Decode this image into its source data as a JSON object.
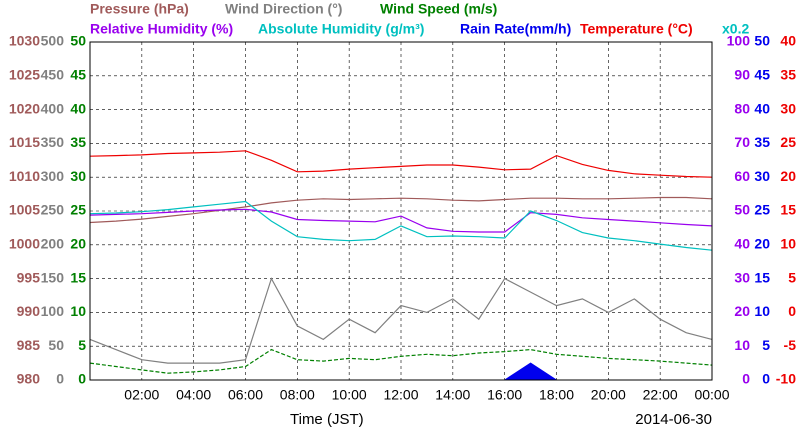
{
  "chart_data": {
    "type": "line",
    "x_label": "Time (JST)",
    "date": "2014-06-30",
    "scale_note": "x0.2",
    "x": [
      0,
      1,
      2,
      3,
      4,
      5,
      6,
      7,
      8,
      9,
      10,
      11,
      12,
      13,
      14,
      15,
      16,
      17,
      18,
      19,
      20,
      21,
      22,
      23,
      24
    ],
    "xlim": [
      0,
      24
    ],
    "xticks": [
      {
        "value": 2,
        "label": "02:00"
      },
      {
        "value": 4,
        "label": "04:00"
      },
      {
        "value": 6,
        "label": "06:00"
      },
      {
        "value": 8,
        "label": "08:00"
      },
      {
        "value": 10,
        "label": "10:00"
      },
      {
        "value": 12,
        "label": "12:00"
      },
      {
        "value": 14,
        "label": "14:00"
      },
      {
        "value": 16,
        "label": "16:00"
      },
      {
        "value": 18,
        "label": "18:00"
      },
      {
        "value": 20,
        "label": "20:00"
      },
      {
        "value": 22,
        "label": "22:00"
      },
      {
        "value": 24,
        "label": "00:00"
      }
    ],
    "grid": true,
    "y_axes": [
      {
        "side": "left",
        "color": "#a05a5a",
        "ylim": [
          980,
          1030
        ],
        "yticks": [
          980,
          985,
          990,
          995,
          1000,
          1005,
          1010,
          1015,
          1020,
          1025,
          1030
        ]
      },
      {
        "side": "left",
        "color": "#808080",
        "ylim": [
          0,
          500
        ],
        "yticks": [
          0,
          50,
          100,
          150,
          200,
          250,
          300,
          350,
          400,
          450,
          500
        ]
      },
      {
        "side": "left",
        "color": "#008000",
        "ylim": [
          0,
          50
        ],
        "yticks": [
          0,
          5,
          10,
          15,
          20,
          25,
          30,
          35,
          40,
          45,
          50
        ]
      },
      {
        "side": "right",
        "color": "#9900ee",
        "ylim": [
          0,
          100
        ],
        "yticks": [
          0,
          10,
          20,
          30,
          40,
          50,
          60,
          70,
          80,
          90,
          100
        ]
      },
      {
        "side": "right",
        "color": "#0000ee",
        "ylim": [
          0,
          50
        ],
        "yticks": [
          0,
          5,
          10,
          15,
          20,
          25,
          30,
          35,
          40,
          45,
          50
        ]
      },
      {
        "side": "right",
        "color": "#ee0000",
        "ylim": [
          -10,
          40
        ],
        "yticks": [
          -10,
          -5,
          0,
          5,
          10,
          15,
          20,
          25,
          30,
          35,
          40
        ]
      }
    ],
    "series": [
      {
        "name": "Pressure (hPa)",
        "color": "#a05a5a",
        "axis": 0,
        "values": [
          1003.3,
          1003.5,
          1003.8,
          1004.2,
          1004.6,
          1005.1,
          1005.6,
          1006.2,
          1006.6,
          1006.8,
          1006.7,
          1006.8,
          1006.9,
          1006.8,
          1006.6,
          1006.5,
          1006.7,
          1006.9,
          1006.9,
          1006.8,
          1006.8,
          1006.9,
          1007.0,
          1007.0,
          1006.8
        ]
      },
      {
        "name": "Wind Direction (°)",
        "color": "#808080",
        "axis": 1,
        "values": [
          60,
          45,
          30,
          25,
          25,
          25,
          30,
          150,
          80,
          60,
          90,
          70,
          110,
          100,
          120,
          90,
          150,
          130,
          110,
          120,
          100,
          120,
          90,
          70,
          60
        ]
      },
      {
        "name": "Wind Speed (m/s)",
        "color": "#008000",
        "axis": 2,
        "values": [
          2.5,
          2.0,
          1.5,
          1.0,
          1.2,
          1.5,
          2.0,
          4.5,
          3.0,
          2.8,
          3.2,
          3.0,
          3.5,
          3.8,
          3.6,
          4.0,
          4.2,
          4.5,
          3.8,
          3.5,
          3.2,
          3.0,
          2.8,
          2.5,
          2.2
        ]
      },
      {
        "name": "Relative Humidity (%)",
        "color": "#9900ee",
        "axis": 3,
        "values": [
          48.8,
          49.0,
          49.2,
          49.6,
          50.0,
          50.3,
          50.5,
          49.7,
          47.5,
          47.2,
          47.0,
          46.8,
          48.5,
          45.0,
          44.0,
          43.8,
          43.8,
          49.5,
          49.0,
          48.0,
          47.5,
          47.0,
          46.5,
          46.0,
          45.6
        ]
      },
      {
        "name": "Absolute Humidity (g/m³)",
        "color": "#00c0c0",
        "axis": 2,
        "values": [
          24.6,
          24.7,
          24.9,
          25.2,
          25.6,
          26.0,
          26.4,
          23.5,
          21.2,
          20.8,
          20.6,
          20.8,
          22.8,
          21.2,
          21.3,
          21.2,
          21.0,
          25.0,
          23.6,
          21.8,
          21.0,
          20.6,
          20.1,
          19.6,
          19.2
        ]
      },
      {
        "name": "Rain Rate(mm/h)",
        "color": "#0000ee",
        "axis": 4,
        "values": [
          0,
          0,
          0,
          0,
          0,
          0,
          0,
          0,
          0,
          0,
          0,
          0,
          0,
          0,
          0,
          0,
          0,
          2.5,
          0,
          0,
          0,
          0,
          0,
          0,
          0
        ]
      },
      {
        "name": "Temperature (°C)",
        "color": "#ee0000",
        "axis": 5,
        "values": [
          23.1,
          23.2,
          23.3,
          23.5,
          23.6,
          23.7,
          23.9,
          22.5,
          20.8,
          20.9,
          21.2,
          21.4,
          21.6,
          21.8,
          21.8,
          21.5,
          21.1,
          21.2,
          23.2,
          21.9,
          21.0,
          20.5,
          20.3,
          20.1,
          20.0
        ]
      }
    ]
  }
}
